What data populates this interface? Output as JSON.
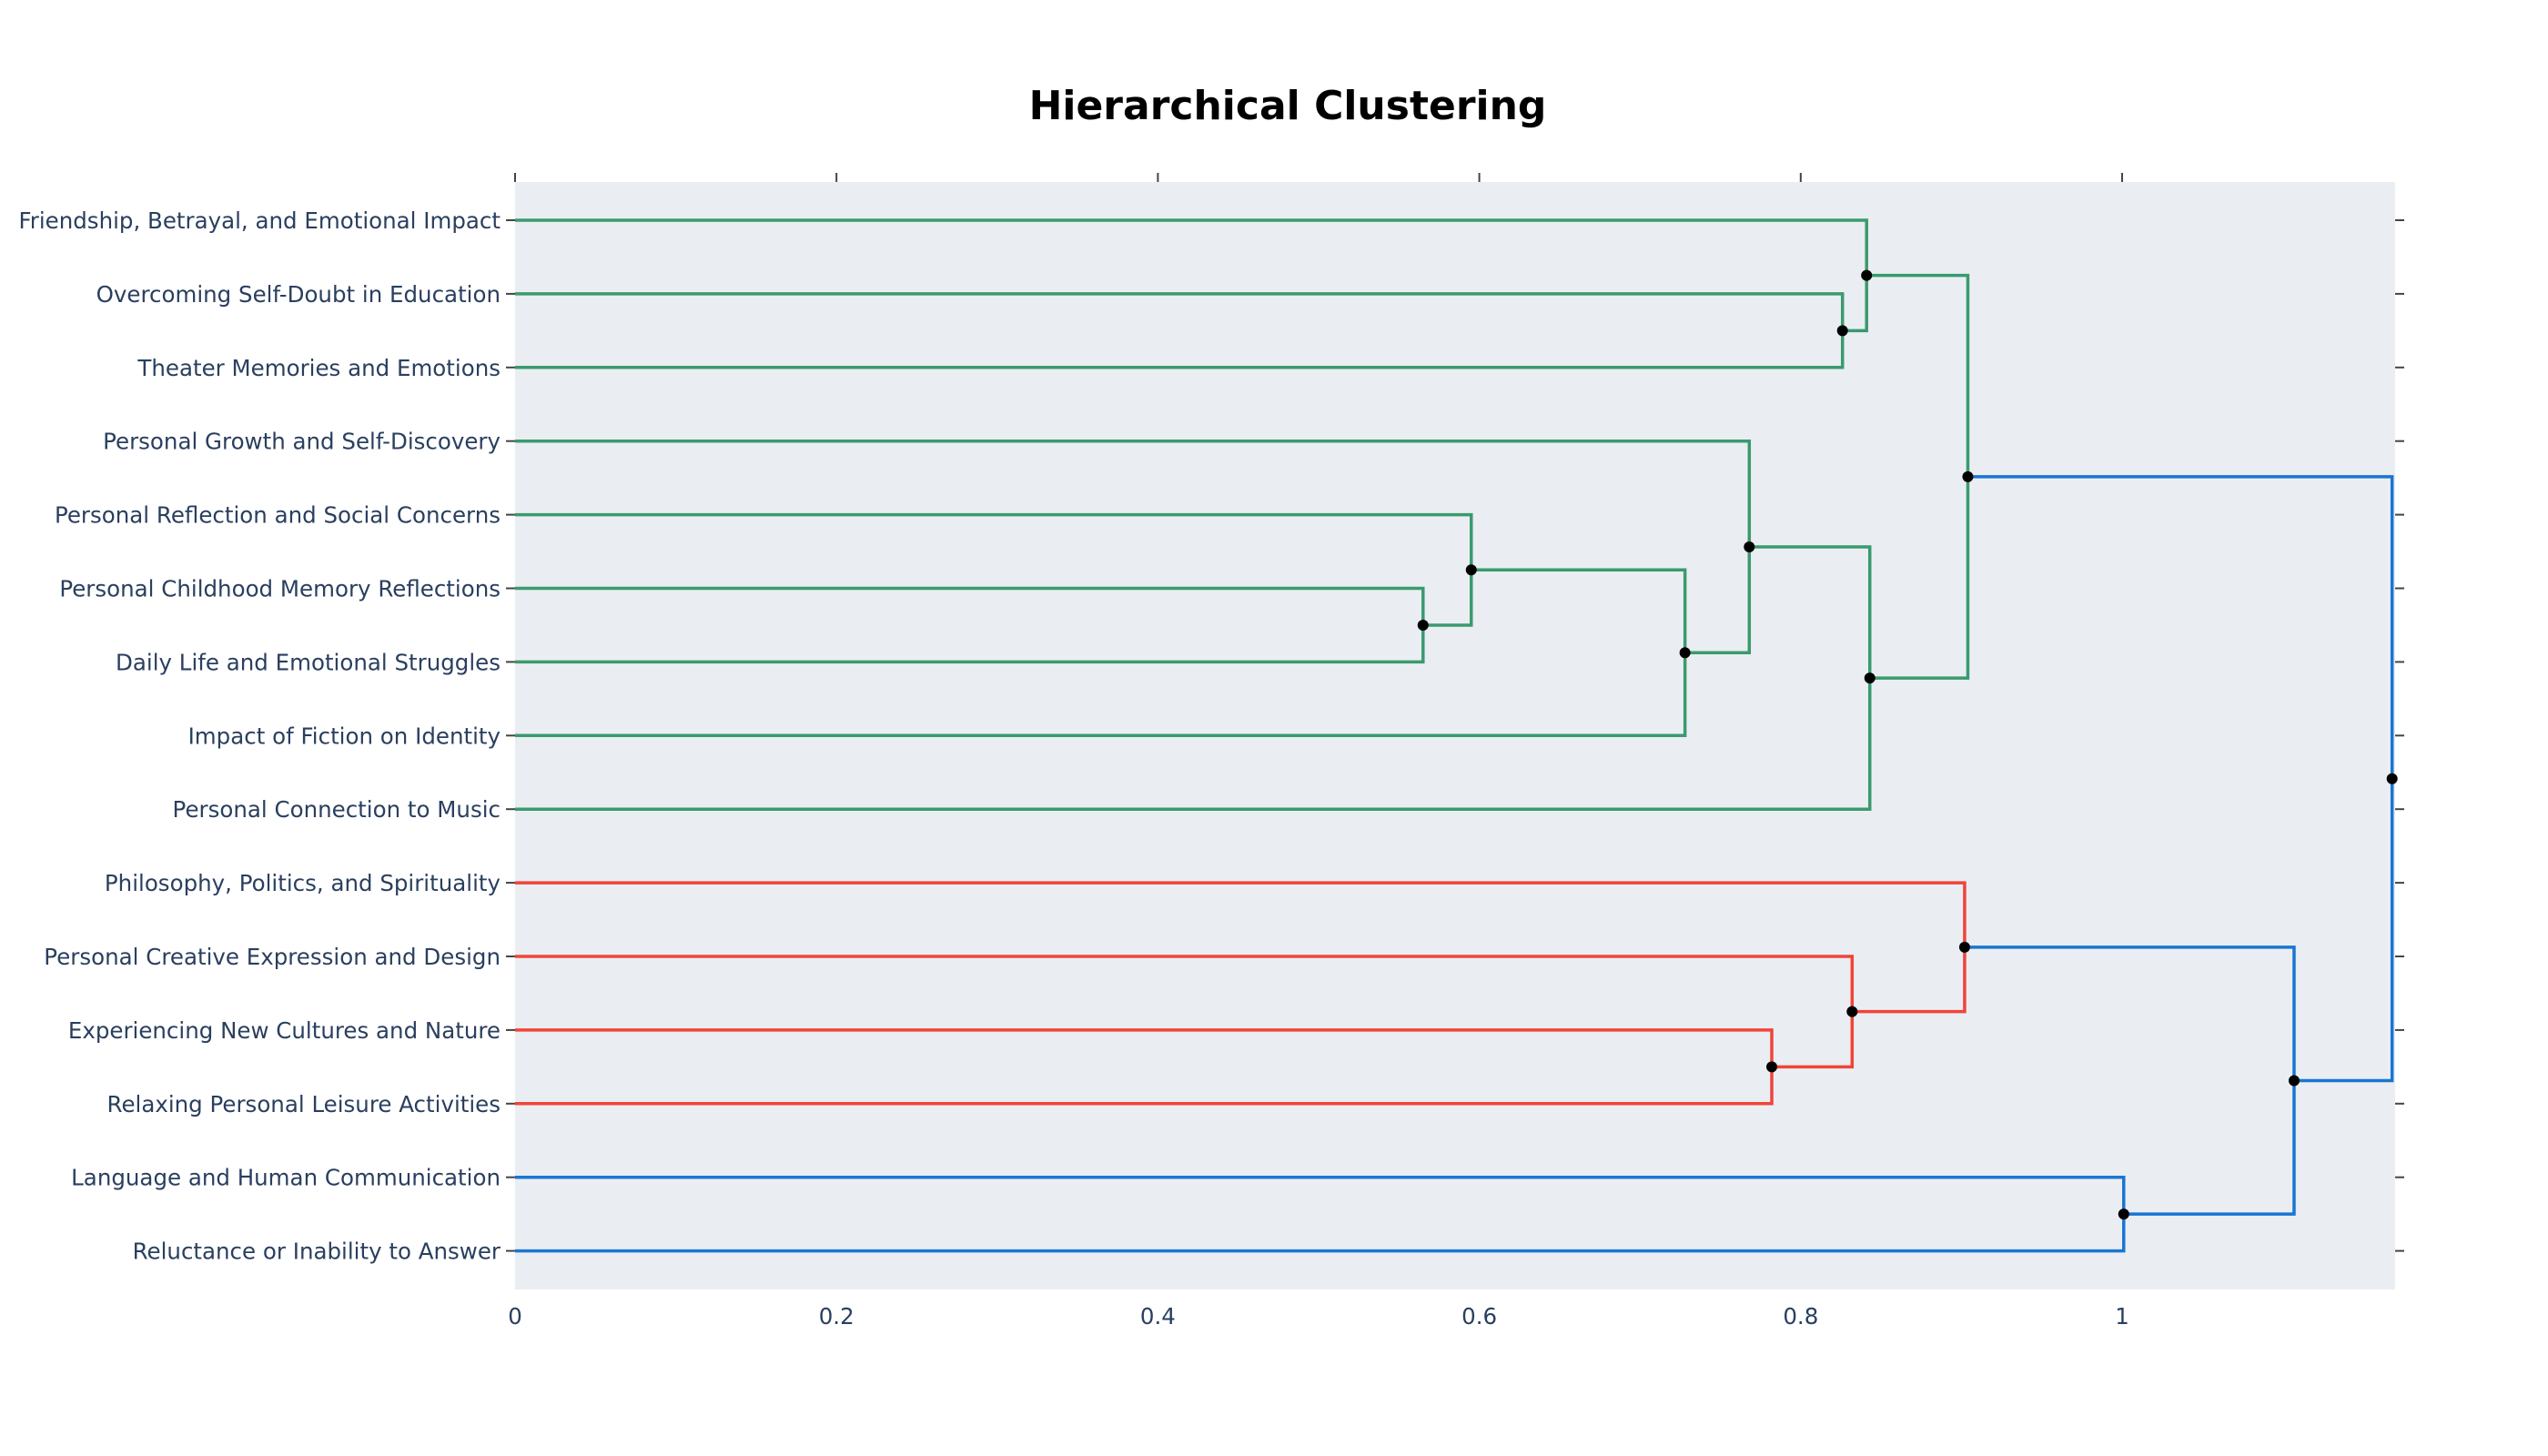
{
  "chart_data": {
    "type": "dendrogram",
    "title": "Hierarchical Clustering",
    "orientation": "left",
    "xlim": [
      0,
      1.17
    ],
    "xticks": [
      0,
      0.2,
      0.4,
      0.6,
      0.8,
      1
    ],
    "xtick_labels": [
      "0",
      "0.2",
      "0.4",
      "0.6",
      "0.8",
      "1"
    ],
    "grid": false,
    "leaves": [
      "Friendship, Betrayal, and Emotional Impact",
      "Overcoming Self-Doubt in Education",
      "Theater Memories and Emotions",
      "Personal Growth and Self-Discovery",
      "Personal Reflection and Social Concerns",
      "Personal Childhood Memory Reflections",
      "Daily Life and Emotional Struggles",
      "Impact of Fiction on Identity",
      "Personal Connection to Music",
      "Philosophy, Politics, and Spirituality",
      "Personal Creative Expression and Design",
      "Experiencing New Cultures and Nature",
      "Relaxing Personal Leisure Activities",
      "Language and Human Communication",
      "Reluctance or Inability to Answer"
    ],
    "colors": {
      "green": "#3a9a6e",
      "red": "#f0443a",
      "blue": "#1a75d2",
      "node": "#000000",
      "plot_bg": "#eaeef2",
      "text": "#2a3f5f"
    },
    "merges": [
      {
        "id": "m1",
        "left": 5,
        "right": 6,
        "height": 0.565,
        "color": "green"
      },
      {
        "id": "m2",
        "left": 4,
        "right": "m1",
        "height": 0.595,
        "color": "green"
      },
      {
        "id": "m3",
        "left": "m2",
        "right": 7,
        "height": 0.728,
        "color": "green"
      },
      {
        "id": "m4",
        "left": 3,
        "right": "m3",
        "height": 0.768,
        "color": "green"
      },
      {
        "id": "m5",
        "left": "m4",
        "right": 8,
        "height": 0.843,
        "color": "green"
      },
      {
        "id": "m6",
        "left": 1,
        "right": 2,
        "height": 0.826,
        "color": "green"
      },
      {
        "id": "m7",
        "left": 0,
        "right": "m6",
        "height": 0.841,
        "color": "green"
      },
      {
        "id": "m8",
        "left": "m7",
        "right": "m5",
        "height": 0.904,
        "color": "green"
      },
      {
        "id": "m9",
        "left": 11,
        "right": 12,
        "height": 0.782,
        "color": "red"
      },
      {
        "id": "m10",
        "left": 10,
        "right": "m9",
        "height": 0.832,
        "color": "red"
      },
      {
        "id": "m11",
        "left": 9,
        "right": "m10",
        "height": 0.902,
        "color": "red"
      },
      {
        "id": "m12",
        "left": 13,
        "right": 14,
        "height": 1.001,
        "color": "blue"
      },
      {
        "id": "m13",
        "left": "m11",
        "right": "m12",
        "height": 1.107,
        "color": "blue"
      },
      {
        "id": "m14",
        "left": "m8",
        "right": "m13",
        "height": 1.168,
        "color": "blue"
      }
    ]
  }
}
